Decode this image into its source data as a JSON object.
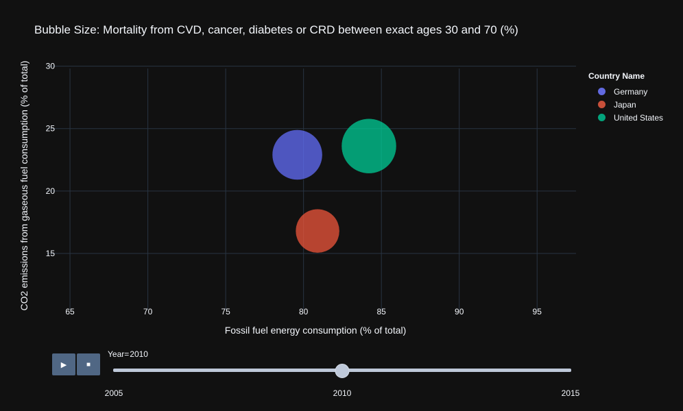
{
  "chart_data": {
    "type": "scatter",
    "title": "Bubble Size: Mortality from CVD, cancer, diabetes or CRD between exact ages 30 and 70 (%)",
    "xlabel": "Fossil fuel energy consumption (% of total)",
    "ylabel": "CO2 emissions from gaseous fuel consumption (% of total)",
    "xlim": [
      63.5,
      97.5
    ],
    "ylim": [
      10.5,
      30.8
    ],
    "xticks": [
      65,
      70,
      75,
      80,
      85,
      90,
      95
    ],
    "yticks": [
      15,
      20,
      25,
      30
    ],
    "grid": true,
    "legend_title": "Country Name",
    "legend_position": "right",
    "series": [
      {
        "name": "Germany",
        "color": "#636efa",
        "x": 79.6,
        "y": 22.9,
        "size": 12.1
      },
      {
        "name": "Japan",
        "color": "#EF553B",
        "x": 80.9,
        "y": 16.8,
        "size": 9.3
      },
      {
        "name": "United States",
        "color": "#00cc96",
        "x": 84.2,
        "y": 23.6,
        "size": 14.5
      }
    ]
  },
  "slider": {
    "label": "Year=",
    "current": "2010",
    "ticks": [
      "2005",
      "2010",
      "2015"
    ],
    "value": 2010,
    "min": 2005,
    "max": 2015
  },
  "controls": {
    "play_icon": "play-icon",
    "stop_icon": "stop-icon",
    "play_glyph": "▶",
    "stop_glyph": "■"
  }
}
